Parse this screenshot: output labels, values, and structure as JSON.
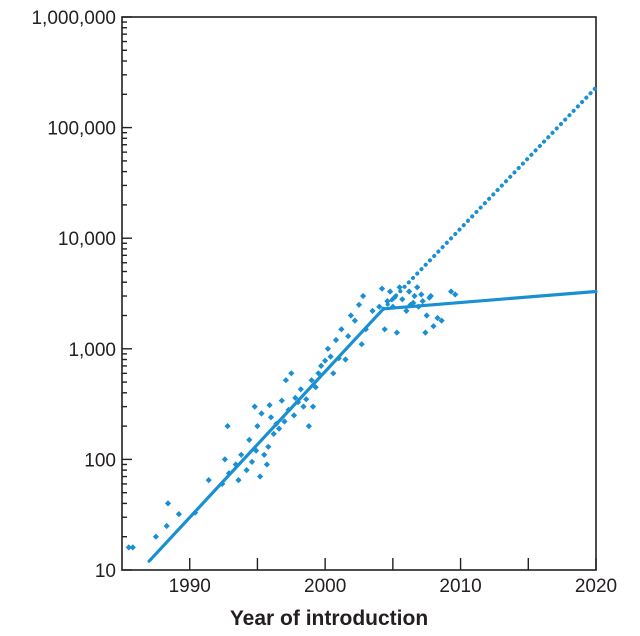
{
  "chart_data": {
    "type": "scatter",
    "title": "",
    "xlabel": "Year of introduction",
    "ylabel": "",
    "x_scale": "linear",
    "y_scale": "log",
    "xlim": [
      1985,
      2020
    ],
    "ylim": [
      10,
      1000000
    ],
    "x_ticks_labeled": [
      1990,
      2000,
      2010,
      2020
    ],
    "x_ticks_minor": [
      1995,
      2005,
      2015
    ],
    "y_ticks": [
      10,
      100,
      1000,
      10000,
      100000,
      1000000
    ],
    "y_tick_labels": [
      "10",
      "100",
      "1,000",
      "10,000",
      "100,000",
      "1,000,000"
    ],
    "grid": false,
    "legend": "none",
    "color": "#1a8fd1",
    "points": [
      [
        1985.5,
        16
      ],
      [
        1985.8,
        16
      ],
      [
        1987.5,
        20
      ],
      [
        1988.3,
        25
      ],
      [
        1988.4,
        40
      ],
      [
        1989.2,
        32
      ],
      [
        1990.4,
        33
      ],
      [
        1991.4,
        65
      ],
      [
        1992.4,
        60
      ],
      [
        1992.6,
        100
      ],
      [
        1992.8,
        200
      ],
      [
        1992.9,
        75
      ],
      [
        1993.4,
        90
      ],
      [
        1993.6,
        65
      ],
      [
        1993.8,
        110
      ],
      [
        1994.2,
        80
      ],
      [
        1994.4,
        150
      ],
      [
        1994.6,
        95
      ],
      [
        1994.8,
        300
      ],
      [
        1994.9,
        120
      ],
      [
        1995.0,
        200
      ],
      [
        1995.2,
        70
      ],
      [
        1995.3,
        260
      ],
      [
        1995.5,
        110
      ],
      [
        1995.7,
        90
      ],
      [
        1995.8,
        130
      ],
      [
        1995.9,
        310
      ],
      [
        1996.0,
        240
      ],
      [
        1996.2,
        170
      ],
      [
        1996.4,
        210
      ],
      [
        1996.6,
        190
      ],
      [
        1996.8,
        340
      ],
      [
        1997.0,
        220
      ],
      [
        1997.1,
        520
      ],
      [
        1997.3,
        280
      ],
      [
        1997.5,
        600
      ],
      [
        1997.7,
        250
      ],
      [
        1997.8,
        360
      ],
      [
        1998.0,
        330
      ],
      [
        1998.2,
        430
      ],
      [
        1998.4,
        300
      ],
      [
        1998.6,
        350
      ],
      [
        1998.8,
        200
      ],
      [
        1999.0,
        520
      ],
      [
        1999.1,
        300
      ],
      [
        1999.3,
        450
      ],
      [
        1999.5,
        600
      ],
      [
        1999.7,
        700
      ],
      [
        2000.0,
        780
      ],
      [
        2000.2,
        1000
      ],
      [
        2000.4,
        850
      ],
      [
        2000.6,
        600
      ],
      [
        2000.8,
        1200
      ],
      [
        2001.0,
        820
      ],
      [
        2001.2,
        1500
      ],
      [
        2001.5,
        800
      ],
      [
        2001.7,
        1300
      ],
      [
        2001.9,
        2000
      ],
      [
        2002.2,
        1800
      ],
      [
        2002.5,
        2500
      ],
      [
        2002.7,
        1100
      ],
      [
        2002.8,
        3000
      ],
      [
        2003.0,
        1500
      ],
      [
        2003.5,
        2200
      ],
      [
        2004.0,
        2400
      ],
      [
        2004.2,
        3500
      ],
      [
        2004.4,
        1500
      ],
      [
        2004.6,
        2700
      ],
      [
        2004.8,
        3300
      ],
      [
        2005.0,
        2400
      ],
      [
        2005.1,
        2900
      ],
      [
        2005.3,
        1400
      ],
      [
        2005.5,
        3600
      ],
      [
        2005.7,
        2800
      ],
      [
        2006.0,
        2200
      ],
      [
        2006.2,
        3300
      ],
      [
        2006.3,
        2500
      ],
      [
        2006.5,
        2600
      ],
      [
        2006.6,
        3000
      ],
      [
        2006.8,
        3600
      ],
      [
        2006.9,
        2400
      ],
      [
        2007.1,
        3100
      ],
      [
        2007.2,
        2700
      ],
      [
        2007.4,
        1400
      ],
      [
        2007.5,
        2000
      ],
      [
        2007.7,
        2900
      ],
      [
        2007.8,
        3000
      ],
      [
        2008.0,
        1600
      ],
      [
        2008.3,
        1900
      ],
      [
        2008.6,
        1800
      ],
      [
        2009.3,
        3300
      ],
      [
        2009.6,
        3100
      ]
    ],
    "trend_solid": [
      [
        1987.0,
        12
      ],
      [
        2004.3,
        2300
      ],
      [
        2020.0,
        3300
      ]
    ],
    "trend_projected": [
      [
        2004.3,
        2300
      ],
      [
        2020.0,
        230000
      ]
    ]
  }
}
